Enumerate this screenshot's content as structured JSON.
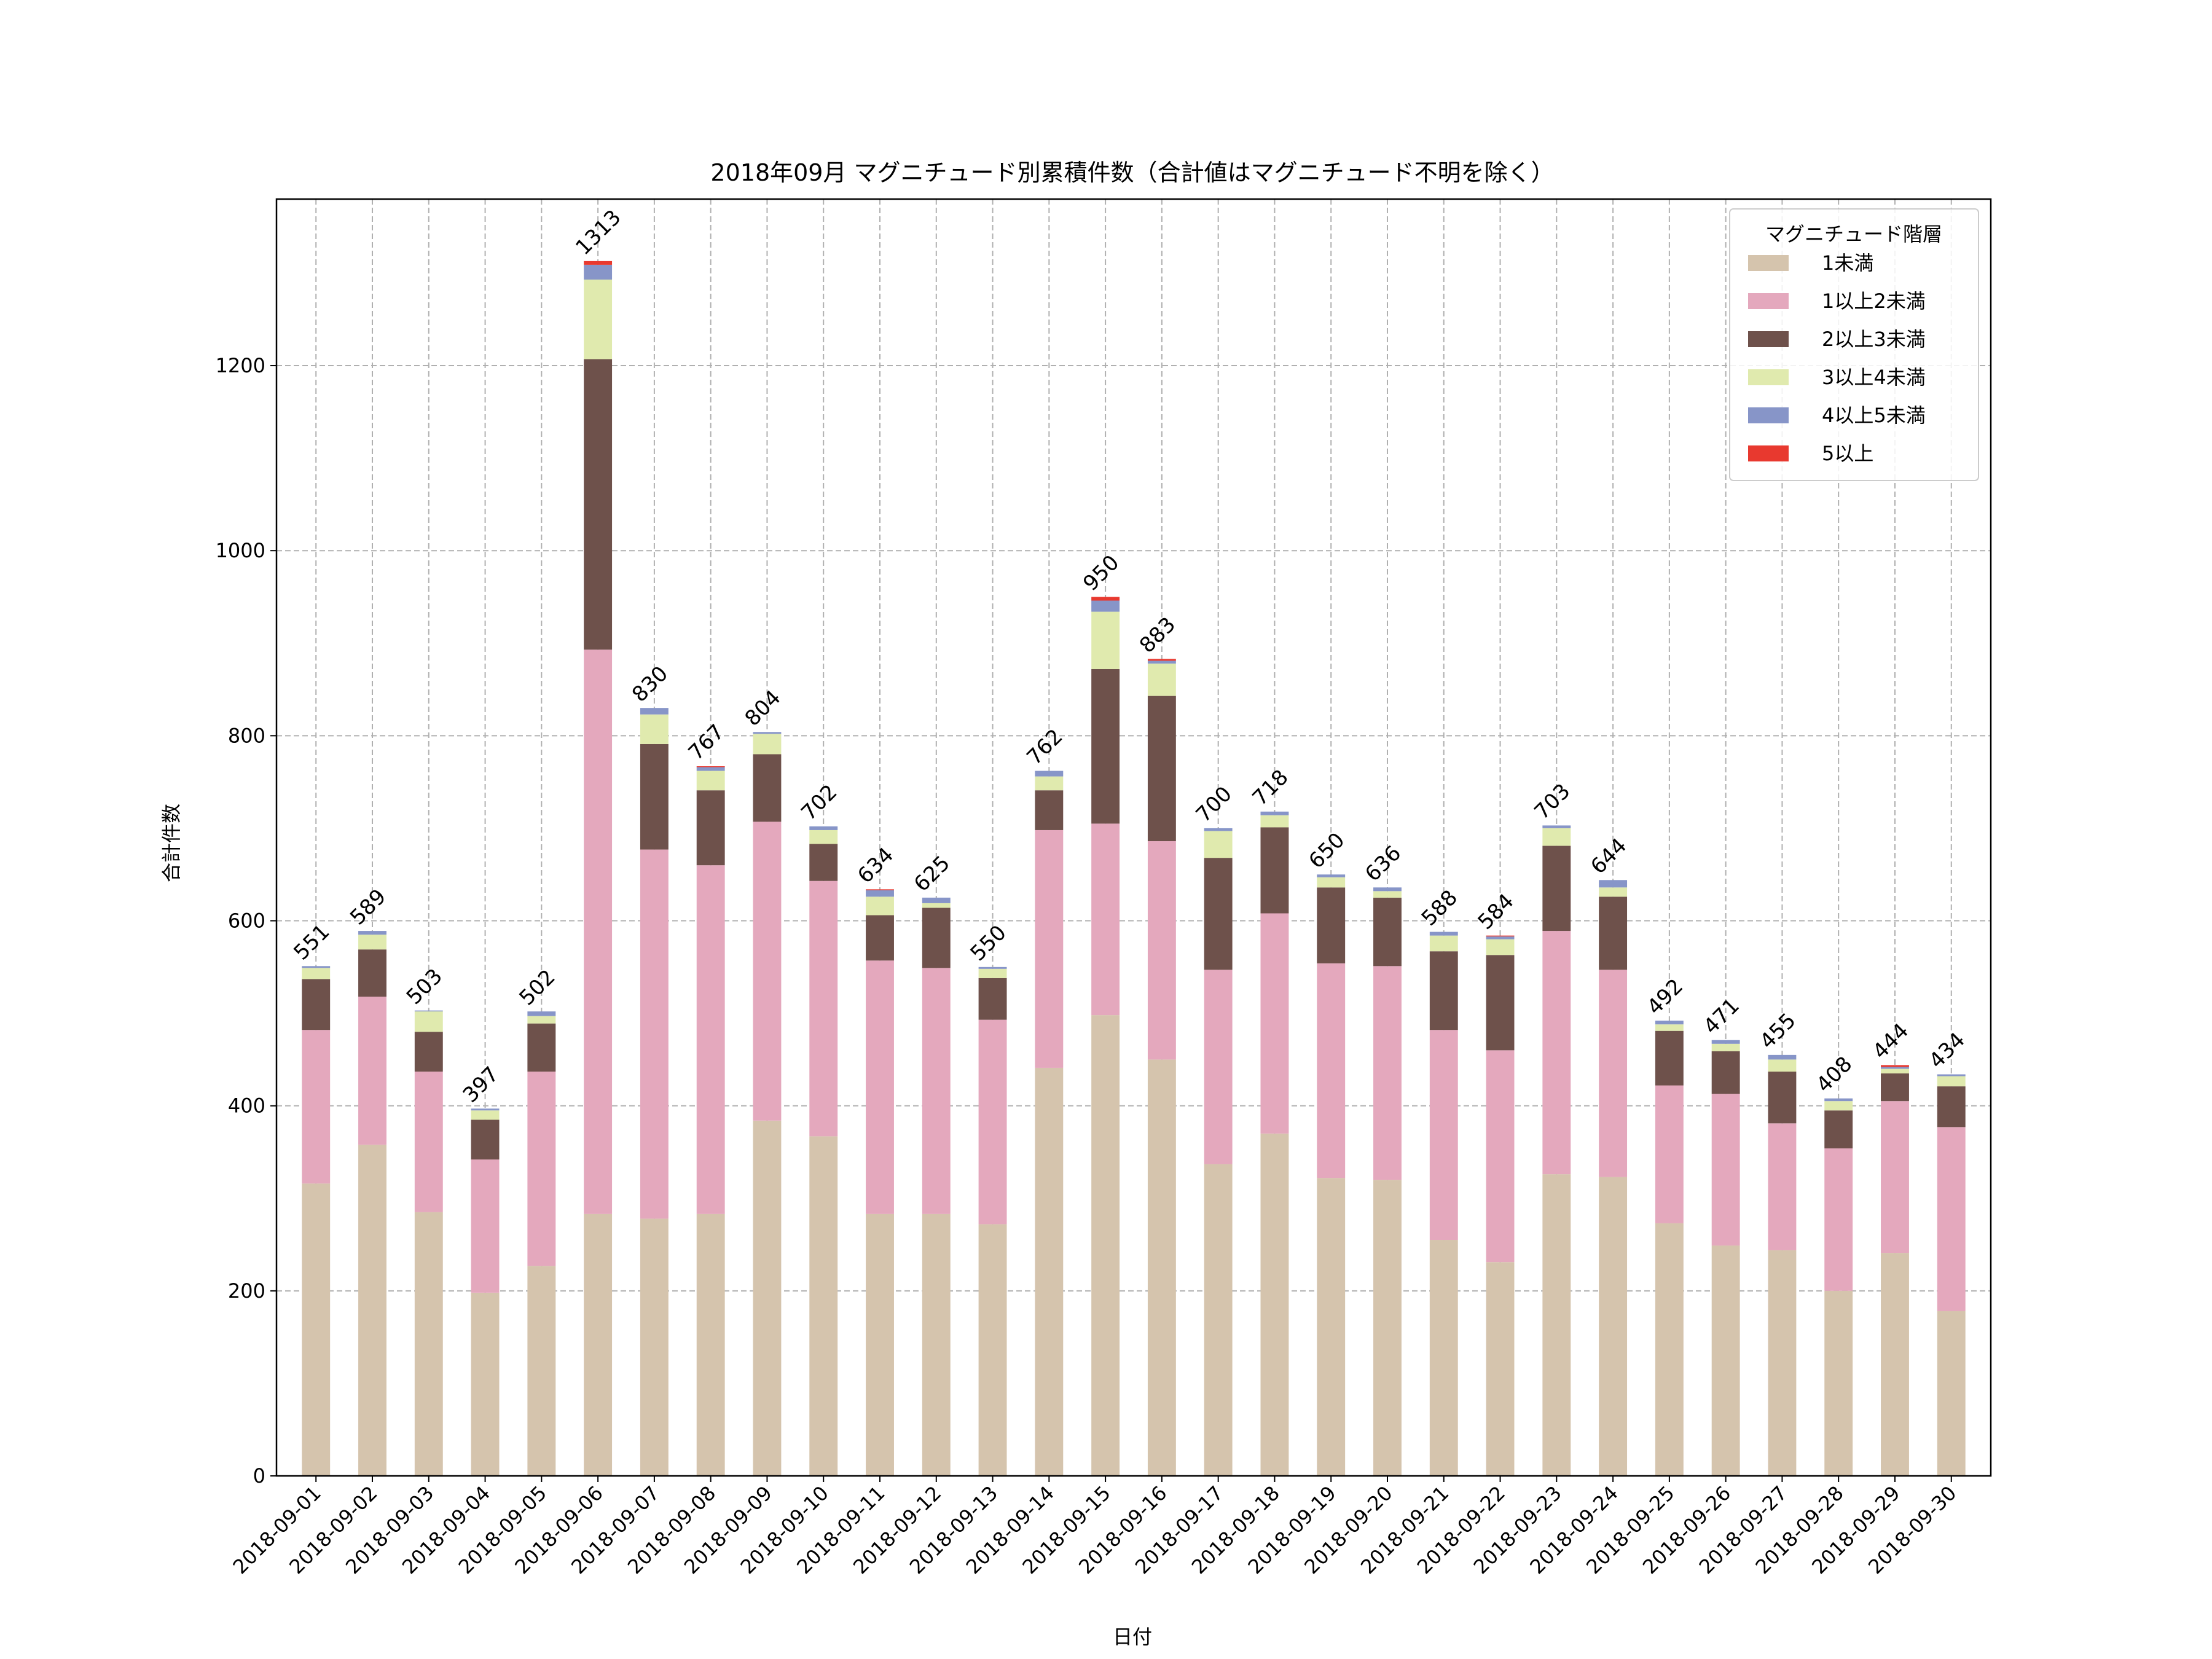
{
  "chart_data": {
    "type": "bar",
    "stacked": true,
    "title": "2018年09月 マグニチュード別累積件数（合計値はマグニチュード不明を除く）",
    "xlabel": "日付",
    "ylabel": "合計件数",
    "ylim": [
      0,
      1380
    ],
    "yticks": [
      0,
      200,
      400,
      600,
      800,
      1000,
      1200
    ],
    "grid": true,
    "legend": {
      "title": "マグニチュード階層",
      "placement": "top-right"
    },
    "categories": [
      "2018-09-01",
      "2018-09-02",
      "2018-09-03",
      "2018-09-04",
      "2018-09-05",
      "2018-09-06",
      "2018-09-07",
      "2018-09-08",
      "2018-09-09",
      "2018-09-10",
      "2018-09-11",
      "2018-09-12",
      "2018-09-13",
      "2018-09-14",
      "2018-09-15",
      "2018-09-16",
      "2018-09-17",
      "2018-09-18",
      "2018-09-19",
      "2018-09-20",
      "2018-09-21",
      "2018-09-22",
      "2018-09-23",
      "2018-09-24",
      "2018-09-25",
      "2018-09-26",
      "2018-09-27",
      "2018-09-28",
      "2018-09-29",
      "2018-09-30"
    ],
    "totals": [
      551,
      589,
      503,
      397,
      502,
      1313,
      830,
      767,
      804,
      702,
      634,
      625,
      550,
      762,
      950,
      883,
      700,
      718,
      650,
      636,
      588,
      584,
      703,
      644,
      492,
      471,
      455,
      408,
      444,
      434
    ],
    "series": [
      {
        "name": "1未満",
        "color": "#d5c4ad",
        "values": [
          316,
          358,
          285,
          198,
          227,
          283,
          278,
          283,
          384,
          367,
          283,
          283,
          272,
          441,
          498,
          450,
          337,
          370,
          322,
          320,
          255,
          231,
          326,
          323,
          273,
          249,
          244,
          200,
          241,
          178
        ]
      },
      {
        "name": "1以上2未満",
        "color": "#e4a8bd",
        "values": [
          166,
          160,
          152,
          144,
          210,
          610,
          399,
          377,
          323,
          276,
          274,
          266,
          221,
          257,
          207,
          236,
          210,
          238,
          232,
          231,
          227,
          229,
          263,
          224,
          149,
          164,
          137,
          154,
          164,
          199
        ]
      },
      {
        "name": "2以上3未満",
        "color": "#6e514b",
        "values": [
          55,
          51,
          43,
          43,
          52,
          314,
          114,
          81,
          73,
          40,
          49,
          65,
          45,
          43,
          167,
          157,
          121,
          93,
          82,
          74,
          85,
          103,
          92,
          79,
          59,
          46,
          56,
          41,
          30,
          44
        ]
      },
      {
        "name": "3以上4未満",
        "color": "#e0eaae",
        "values": [
          12,
          16,
          22,
          10,
          8,
          86,
          32,
          21,
          22,
          15,
          20,
          5,
          10,
          15,
          62,
          35,
          29,
          13,
          11,
          7,
          17,
          17,
          19,
          10,
          7,
          8,
          13,
          10,
          5,
          11
        ]
      },
      {
        "name": "4以上5未満",
        "color": "#8795c8",
        "values": [
          2,
          4,
          1,
          2,
          5,
          16,
          7,
          4,
          2,
          4,
          7,
          6,
          2,
          6,
          12,
          3,
          3,
          4,
          3,
          4,
          4,
          3,
          3,
          8,
          4,
          4,
          5,
          3,
          2,
          2
        ]
      },
      {
        "name": "5以上",
        "color": "#e8392f",
        "values": [
          0,
          0,
          0,
          0,
          0,
          4,
          0,
          1,
          0,
          0,
          1,
          0,
          0,
          0,
          4,
          2,
          0,
          0,
          0,
          0,
          0,
          1,
          0,
          0,
          0,
          0,
          0,
          0,
          2,
          0
        ]
      }
    ]
  }
}
